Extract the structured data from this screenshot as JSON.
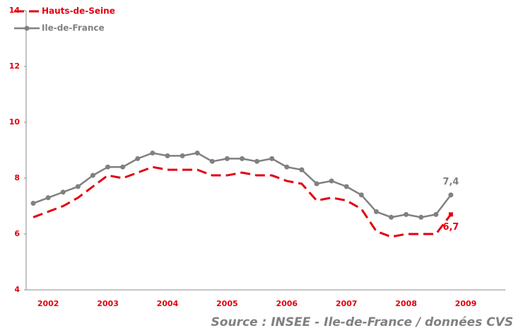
{
  "chart_data": {
    "type": "line",
    "source": "Source : INSEE - Ile-de-France / données CVS",
    "categories": [
      null,
      "2002",
      null,
      null,
      null,
      "2003",
      null,
      null,
      null,
      "2004",
      null,
      null,
      null,
      "2005",
      null,
      null,
      null,
      "2006",
      null,
      null,
      null,
      "2007",
      null,
      null,
      null,
      "2008",
      null,
      null,
      null,
      "2009",
      null,
      null
    ],
    "series": [
      {
        "name": "Hauts-de-Seine",
        "color": "#e3000f",
        "dashed": true,
        "values": [
          6.6,
          6.8,
          7.0,
          7.3,
          7.7,
          8.1,
          8.0,
          8.2,
          8.4,
          8.3,
          8.3,
          8.3,
          8.1,
          8.1,
          8.2,
          8.1,
          8.1,
          7.9,
          7.8,
          7.2,
          7.3,
          7.2,
          6.9,
          6.1,
          5.9,
          6.0,
          6.0,
          6.0,
          6.7,
          null,
          null,
          null
        ],
        "value_labels": [
          null,
          null,
          null,
          null,
          null,
          null,
          null,
          null,
          null,
          null,
          null,
          null,
          null,
          null,
          null,
          null,
          null,
          null,
          null,
          null,
          null,
          null,
          null,
          null,
          null,
          null,
          null,
          null,
          "6,7",
          null,
          null,
          null
        ]
      },
      {
        "name": "Ile-de-France",
        "color": "#808080",
        "dashed": false,
        "values": [
          7.1,
          7.3,
          7.5,
          7.7,
          8.1,
          8.4,
          8.4,
          8.7,
          8.9,
          8.8,
          8.8,
          8.9,
          8.6,
          8.7,
          8.7,
          8.6,
          8.7,
          8.4,
          8.3,
          7.8,
          7.9,
          7.7,
          7.4,
          6.8,
          6.6,
          6.7,
          6.6,
          6.7,
          7.4,
          null,
          null,
          null
        ],
        "value_labels": [
          null,
          null,
          null,
          null,
          null,
          null,
          null,
          null,
          null,
          null,
          null,
          null,
          null,
          null,
          null,
          null,
          null,
          null,
          null,
          null,
          null,
          null,
          null,
          null,
          null,
          null,
          null,
          null,
          "7,4",
          null,
          null,
          null
        ]
      }
    ],
    "ylim": [
      4,
      14
    ],
    "yticks": [
      4,
      6,
      8,
      10,
      12,
      14
    ],
    "grid": false,
    "legend": "top-left"
  }
}
